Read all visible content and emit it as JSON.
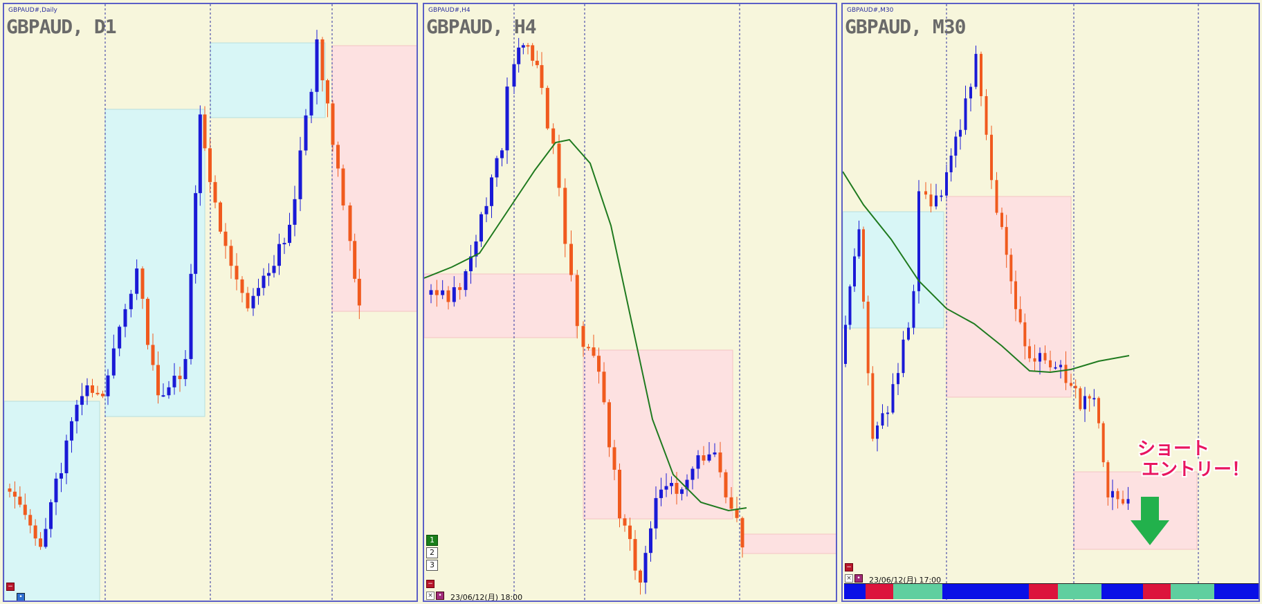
{
  "panels": [
    {
      "tag": "GBPAUD#,Daily",
      "title": "GBPAUD, D1"
    },
    {
      "tag": "GBPAUD#,H4",
      "title": "GBPAUD, H4",
      "stamp": "23/06/12(月) 18:00",
      "buttons": [
        "1",
        "2",
        "3"
      ]
    },
    {
      "tag": "GBPAUD#,M30",
      "title": "GBPAUD, M30",
      "stamp": "23/06/12(月) 17:00"
    }
  ],
  "callout": {
    "line1": "ショート",
    "line2": "エントリー！"
  },
  "colors": {
    "background": "#f7f6dc",
    "bull_candle": "#1a1ad6",
    "bear_candle": "#f05a1e",
    "moving_average": "#1f7a1f",
    "support_zone": "#d8f6f6",
    "resistance_zone": "#fde1e1",
    "callout": "#e8155f",
    "arrow": "#22b14c",
    "strip": [
      "#0a10e6",
      "#dc143c",
      "#5fcf9f"
    ]
  },
  "icons": [
    "minimize-icon",
    "close-icon",
    "arrow-down-icon"
  ]
}
